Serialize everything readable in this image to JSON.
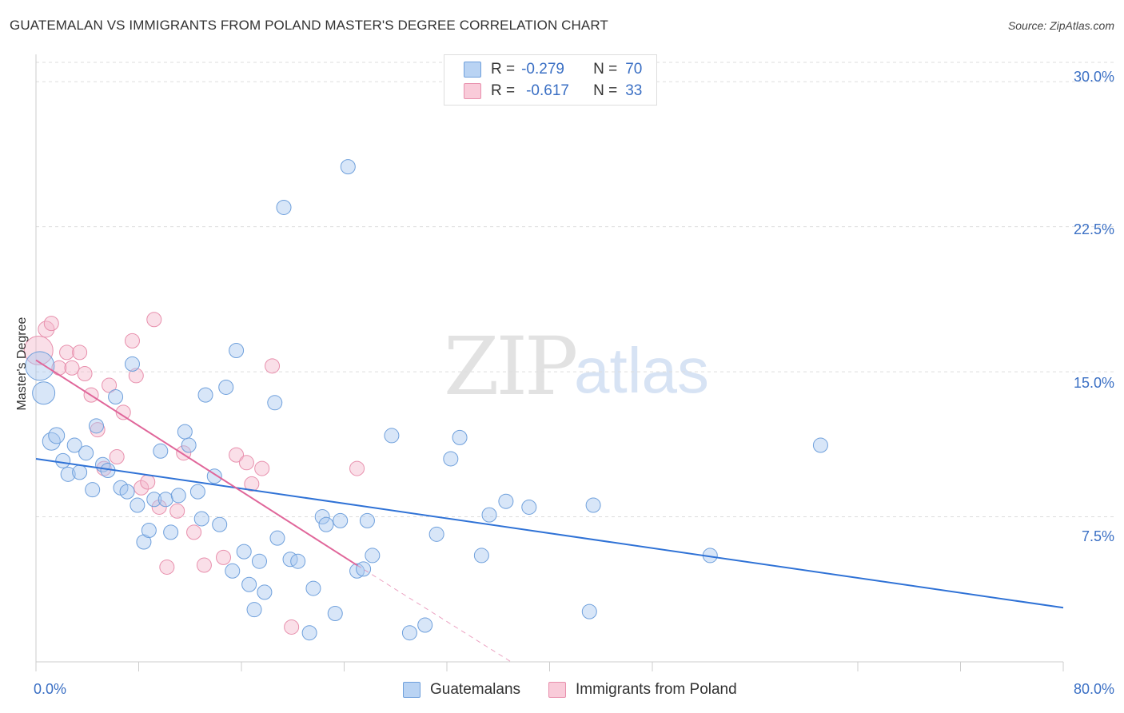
{
  "header": {
    "title": "GUATEMALAN VS IMMIGRANTS FROM POLAND MASTER'S DEGREE CORRELATION CHART",
    "source": "Source: ZipAtlas.com"
  },
  "watermark": {
    "zip": "ZIP",
    "atlas": "atlas"
  },
  "legend_top": {
    "row1": {
      "r_label": "R =",
      "r_value": "-0.279",
      "n_label": "N =",
      "n_value": "70"
    },
    "row2": {
      "r_label": "R =",
      "r_value": "-0.617",
      "n_label": "N =",
      "n_value": "33"
    }
  },
  "legend_bottom": {
    "series1": "Guatemalans",
    "series2": "Immigrants from Poland"
  },
  "axes": {
    "ylabel": "Master's Degree",
    "x_min_label": "0.0%",
    "x_max_label": "80.0%",
    "y_ticks": [
      "30.0%",
      "22.5%",
      "15.0%",
      "7.5%"
    ]
  },
  "colors": {
    "blue_fill": "#a8c8f0",
    "blue_stroke": "#6fa0dc",
    "blue_line": "#2f72d6",
    "pink_fill": "#f5b8cb",
    "pink_stroke": "#e890ad",
    "pink_line": "#e0669a",
    "grid": "#dddddd",
    "axis_text": "#3a6fc4"
  },
  "chart_data": {
    "type": "scatter",
    "title": "GUATEMALAN VS IMMIGRANTS FROM POLAND MASTER'S DEGREE CORRELATION CHART",
    "xlabel": "",
    "ylabel": "Master's Degree",
    "xlim": [
      0,
      80
    ],
    "ylim": [
      0,
      31
    ],
    "y_ticks": [
      7.5,
      15.0,
      22.5,
      30.0
    ],
    "x_ticks": [
      0,
      8,
      16,
      24,
      32,
      40,
      48,
      64,
      72,
      80
    ],
    "grid": true,
    "series": [
      {
        "name": "Guatemalans",
        "R": -0.279,
        "N": 70,
        "trend": {
          "x": [
            0,
            80
          ],
          "y": [
            10.5,
            2.8
          ]
        },
        "points": [
          [
            0.3,
            15.3,
            18
          ],
          [
            0.6,
            13.9,
            14
          ],
          [
            1.2,
            11.4,
            11
          ],
          [
            1.6,
            11.7,
            10
          ],
          [
            2.1,
            10.4,
            9
          ],
          [
            2.5,
            9.7,
            9
          ],
          [
            3.0,
            11.2,
            9
          ],
          [
            3.4,
            9.8,
            9
          ],
          [
            3.9,
            10.8,
            9
          ],
          [
            4.4,
            8.9,
            9
          ],
          [
            4.7,
            12.2,
            9
          ],
          [
            5.2,
            10.2,
            9
          ],
          [
            5.6,
            9.9,
            9
          ],
          [
            6.2,
            13.7,
            9
          ],
          [
            6.6,
            9.0,
            9
          ],
          [
            7.1,
            8.8,
            9
          ],
          [
            7.5,
            15.4,
            9
          ],
          [
            7.9,
            8.1,
            9
          ],
          [
            8.4,
            6.2,
            9
          ],
          [
            8.8,
            6.8,
            9
          ],
          [
            9.2,
            8.4,
            9
          ],
          [
            9.7,
            10.9,
            9
          ],
          [
            10.1,
            8.4,
            9
          ],
          [
            10.5,
            6.7,
            9
          ],
          [
            11.1,
            8.6,
            9
          ],
          [
            11.6,
            11.9,
            9
          ],
          [
            11.9,
            11.2,
            9
          ],
          [
            12.6,
            8.8,
            9
          ],
          [
            12.9,
            7.4,
            9
          ],
          [
            13.2,
            13.8,
            9
          ],
          [
            13.9,
            9.6,
            9
          ],
          [
            14.3,
            7.1,
            9
          ],
          [
            14.8,
            14.2,
            9
          ],
          [
            15.3,
            4.7,
            9
          ],
          [
            15.6,
            16.1,
            9
          ],
          [
            16.2,
            5.7,
            9
          ],
          [
            16.6,
            4.0,
            9
          ],
          [
            17.0,
            2.7,
            9
          ],
          [
            17.4,
            5.2,
            9
          ],
          [
            17.8,
            3.6,
            9
          ],
          [
            18.6,
            13.4,
            9
          ],
          [
            18.8,
            6.4,
            9
          ],
          [
            19.3,
            23.5,
            9
          ],
          [
            19.8,
            5.3,
            9
          ],
          [
            20.4,
            5.2,
            9
          ],
          [
            21.3,
            1.5,
            9
          ],
          [
            21.6,
            3.8,
            9
          ],
          [
            22.3,
            7.5,
            9
          ],
          [
            22.6,
            7.1,
            9
          ],
          [
            23.3,
            2.5,
            9
          ],
          [
            23.7,
            7.3,
            9
          ],
          [
            24.3,
            25.6,
            9
          ],
          [
            25.0,
            4.7,
            9
          ],
          [
            25.5,
            4.8,
            9
          ],
          [
            25.8,
            7.3,
            9
          ],
          [
            26.2,
            5.5,
            9
          ],
          [
            27.7,
            11.7,
            9
          ],
          [
            29.1,
            1.5,
            9
          ],
          [
            30.3,
            1.9,
            9
          ],
          [
            31.2,
            6.6,
            9
          ],
          [
            32.3,
            10.5,
            9
          ],
          [
            33.0,
            11.6,
            9
          ],
          [
            34.7,
            5.5,
            9
          ],
          [
            35.3,
            7.6,
            9
          ],
          [
            36.6,
            8.3,
            9
          ],
          [
            38.4,
            8.0,
            9
          ],
          [
            43.1,
            2.6,
            9
          ],
          [
            43.4,
            8.1,
            9
          ],
          [
            52.5,
            5.5,
            9
          ],
          [
            61.1,
            11.2,
            9
          ]
        ]
      },
      {
        "name": "Immigrants from Poland",
        "R": -0.617,
        "N": 33,
        "trend": {
          "x": [
            0,
            25
          ],
          "y": [
            15.6,
            5.0
          ]
        },
        "trend_dashed": {
          "x": [
            25,
            37
          ],
          "y": [
            5.0,
            0.0
          ]
        },
        "points": [
          [
            0.2,
            16.1,
            18
          ],
          [
            0.8,
            17.2,
            10
          ],
          [
            1.2,
            17.5,
            9
          ],
          [
            1.8,
            15.2,
            9
          ],
          [
            2.4,
            16.0,
            9
          ],
          [
            2.8,
            15.2,
            9
          ],
          [
            3.4,
            16.0,
            9
          ],
          [
            3.8,
            14.9,
            9
          ],
          [
            4.3,
            13.8,
            9
          ],
          [
            4.8,
            12.0,
            9
          ],
          [
            5.3,
            10.0,
            9
          ],
          [
            5.7,
            14.3,
            9
          ],
          [
            6.3,
            10.6,
            9
          ],
          [
            6.8,
            12.9,
            9
          ],
          [
            7.5,
            16.6,
            9
          ],
          [
            7.8,
            14.8,
            9
          ],
          [
            8.2,
            9.0,
            9
          ],
          [
            8.7,
            9.3,
            9
          ],
          [
            9.2,
            17.7,
            9
          ],
          [
            9.6,
            8.0,
            9
          ],
          [
            10.2,
            4.9,
            9
          ],
          [
            11.0,
            7.8,
            9
          ],
          [
            11.5,
            10.8,
            9
          ],
          [
            12.3,
            6.7,
            9
          ],
          [
            13.1,
            5.0,
            9
          ],
          [
            14.6,
            5.4,
            9
          ],
          [
            15.6,
            10.7,
            9
          ],
          [
            16.4,
            10.3,
            9
          ],
          [
            16.8,
            9.2,
            9
          ],
          [
            17.6,
            10.0,
            9
          ],
          [
            18.4,
            15.3,
            9
          ],
          [
            19.9,
            1.8,
            9
          ],
          [
            25.0,
            10.0,
            9
          ]
        ]
      }
    ]
  }
}
